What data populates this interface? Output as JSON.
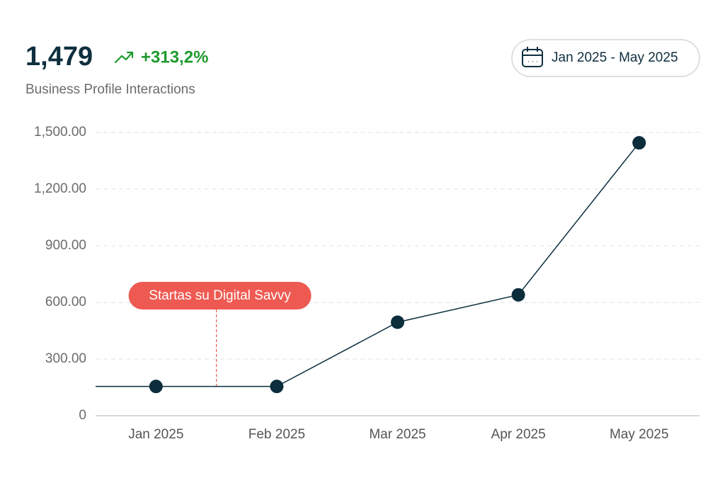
{
  "header": {
    "total": "1,479",
    "change": "+313,2%",
    "subtitle": "Business Profile Interactions",
    "date_range": "Jan 2025 - May 2025"
  },
  "chart_data": {
    "type": "line",
    "categories": [
      "Jan 2025",
      "Feb 2025",
      "Mar 2025",
      "Apr 2025",
      "May 2025"
    ],
    "series": [
      {
        "name": "Business Profile Interactions",
        "color": "#0b2d3c",
        "values": [
          155,
          155,
          495,
          640,
          1445
        ]
      }
    ],
    "ylim": [
      0,
      1500
    ],
    "yticks": [
      0,
      {
        "value": 300,
        "label": "300.00"
      },
      {
        "value": 600,
        "label": "600.00"
      },
      {
        "value": 900,
        "label": "900.00"
      },
      {
        "value": 1200,
        "label": "1,200.00"
      },
      {
        "value": 1500,
        "label": "1,500.00"
      }
    ],
    "grid": true,
    "annotation": {
      "text": "Startas su Digital Savvy",
      "color": "#ee5a52"
    }
  }
}
